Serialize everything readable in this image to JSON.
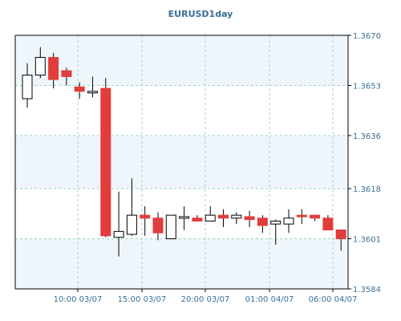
{
  "chart_data": {
    "type": "candlestick",
    "title": "EURUSD1day",
    "y_axis": {
      "position": "right",
      "ylim": [
        1.3584,
        1.367
      ],
      "ticks": [
        1.3584,
        1.3601,
        1.3618,
        1.3636,
        1.3653,
        1.367
      ],
      "tick_labels": [
        "1.3584",
        "1.3601",
        "1.3618",
        "1.3636",
        "1.3653",
        "1.3670"
      ]
    },
    "x_axis": {
      "ticks": [
        "10:00 03/07",
        "15:00 03/07",
        "20:00 03/07",
        "01:00 04/07",
        "06:00 04/07"
      ],
      "tick_labels": [
        "10:00 03/07",
        "15:00 03/07",
        "20:00 03/07",
        "01:00 04/07",
        "06:00 04/07"
      ]
    },
    "grid": true,
    "colors": {
      "background": "#ffffff",
      "outer": "#e6f0f6",
      "grid": "#9fd0d0",
      "axis_text": "#3a6f96",
      "bullish": "#ffffff",
      "bearish": "#e23c3c",
      "wick": "#000000"
    },
    "candles": [
      {
        "open": 1.36485,
        "high": 1.36605,
        "low": 1.36455,
        "close": 1.36565
      },
      {
        "open": 1.36565,
        "high": 1.3666,
        "low": 1.36555,
        "close": 1.36625
      },
      {
        "open": 1.36625,
        "high": 1.3664,
        "low": 1.3652,
        "close": 1.3655
      },
      {
        "open": 1.3658,
        "high": 1.3659,
        "low": 1.3653,
        "close": 1.3656
      },
      {
        "open": 1.36525,
        "high": 1.3654,
        "low": 1.36485,
        "close": 1.3651
      },
      {
        "open": 1.3651,
        "high": 1.3656,
        "low": 1.3649,
        "close": 1.3651
      },
      {
        "open": 1.3652,
        "high": 1.36555,
        "low": 1.36015,
        "close": 1.3602
      },
      {
        "open": 1.36015,
        "high": 1.3617,
        "low": 1.3595,
        "close": 1.36035
      },
      {
        "open": 1.36025,
        "high": 1.36215,
        "low": 1.3602,
        "close": 1.3609
      },
      {
        "open": 1.3609,
        "high": 1.3612,
        "low": 1.3602,
        "close": 1.3608
      },
      {
        "open": 1.3608,
        "high": 1.361,
        "low": 1.36005,
        "close": 1.3603
      },
      {
        "open": 1.3601,
        "high": 1.3609,
        "low": 1.3601,
        "close": 1.3609
      },
      {
        "open": 1.36085,
        "high": 1.3612,
        "low": 1.3604,
        "close": 1.36085
      },
      {
        "open": 1.3608,
        "high": 1.3609,
        "low": 1.3607,
        "close": 1.3607
      },
      {
        "open": 1.3607,
        "high": 1.3612,
        "low": 1.3607,
        "close": 1.3609
      },
      {
        "open": 1.3609,
        "high": 1.3611,
        "low": 1.3605,
        "close": 1.3608
      },
      {
        "open": 1.3608,
        "high": 1.361,
        "low": 1.3606,
        "close": 1.3609
      },
      {
        "open": 1.36085,
        "high": 1.36105,
        "low": 1.3605,
        "close": 1.36075
      },
      {
        "open": 1.3608,
        "high": 1.3609,
        "low": 1.3603,
        "close": 1.36055
      },
      {
        "open": 1.3606,
        "high": 1.36075,
        "low": 1.3599,
        "close": 1.3607
      },
      {
        "open": 1.3606,
        "high": 1.3611,
        "low": 1.3603,
        "close": 1.3608
      },
      {
        "open": 1.3609,
        "high": 1.3611,
        "low": 1.3606,
        "close": 1.36085
      },
      {
        "open": 1.3609,
        "high": 1.3609,
        "low": 1.3607,
        "close": 1.3608
      },
      {
        "open": 1.3608,
        "high": 1.3609,
        "low": 1.3604,
        "close": 1.3604
      },
      {
        "open": 1.3604,
        "high": 1.3604,
        "low": 1.3597,
        "close": 1.3601
      }
    ]
  }
}
